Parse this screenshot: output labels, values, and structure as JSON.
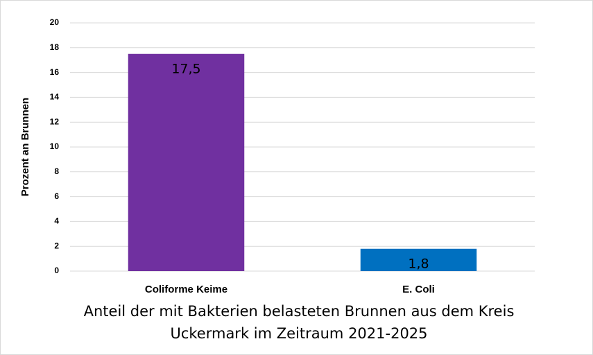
{
  "chart_data": {
    "type": "bar",
    "xlabel": "Anteil der mit Bakterien belasteten Brunnen aus dem Kreis Uckermark im Zeitraum 2021-2025",
    "ylabel": "Prozent an Brunnen",
    "categories": [
      "Coliforme Keime",
      "E. Coli"
    ],
    "values": [
      17.5,
      1.8
    ],
    "value_labels": [
      "17,5",
      "1,8"
    ],
    "colors": [
      "#7030a0",
      "#0070c0"
    ],
    "ylim": [
      0,
      20
    ],
    "yticks": [
      0,
      2,
      4,
      6,
      8,
      10,
      12,
      14,
      16,
      18,
      20
    ],
    "grid": true
  }
}
